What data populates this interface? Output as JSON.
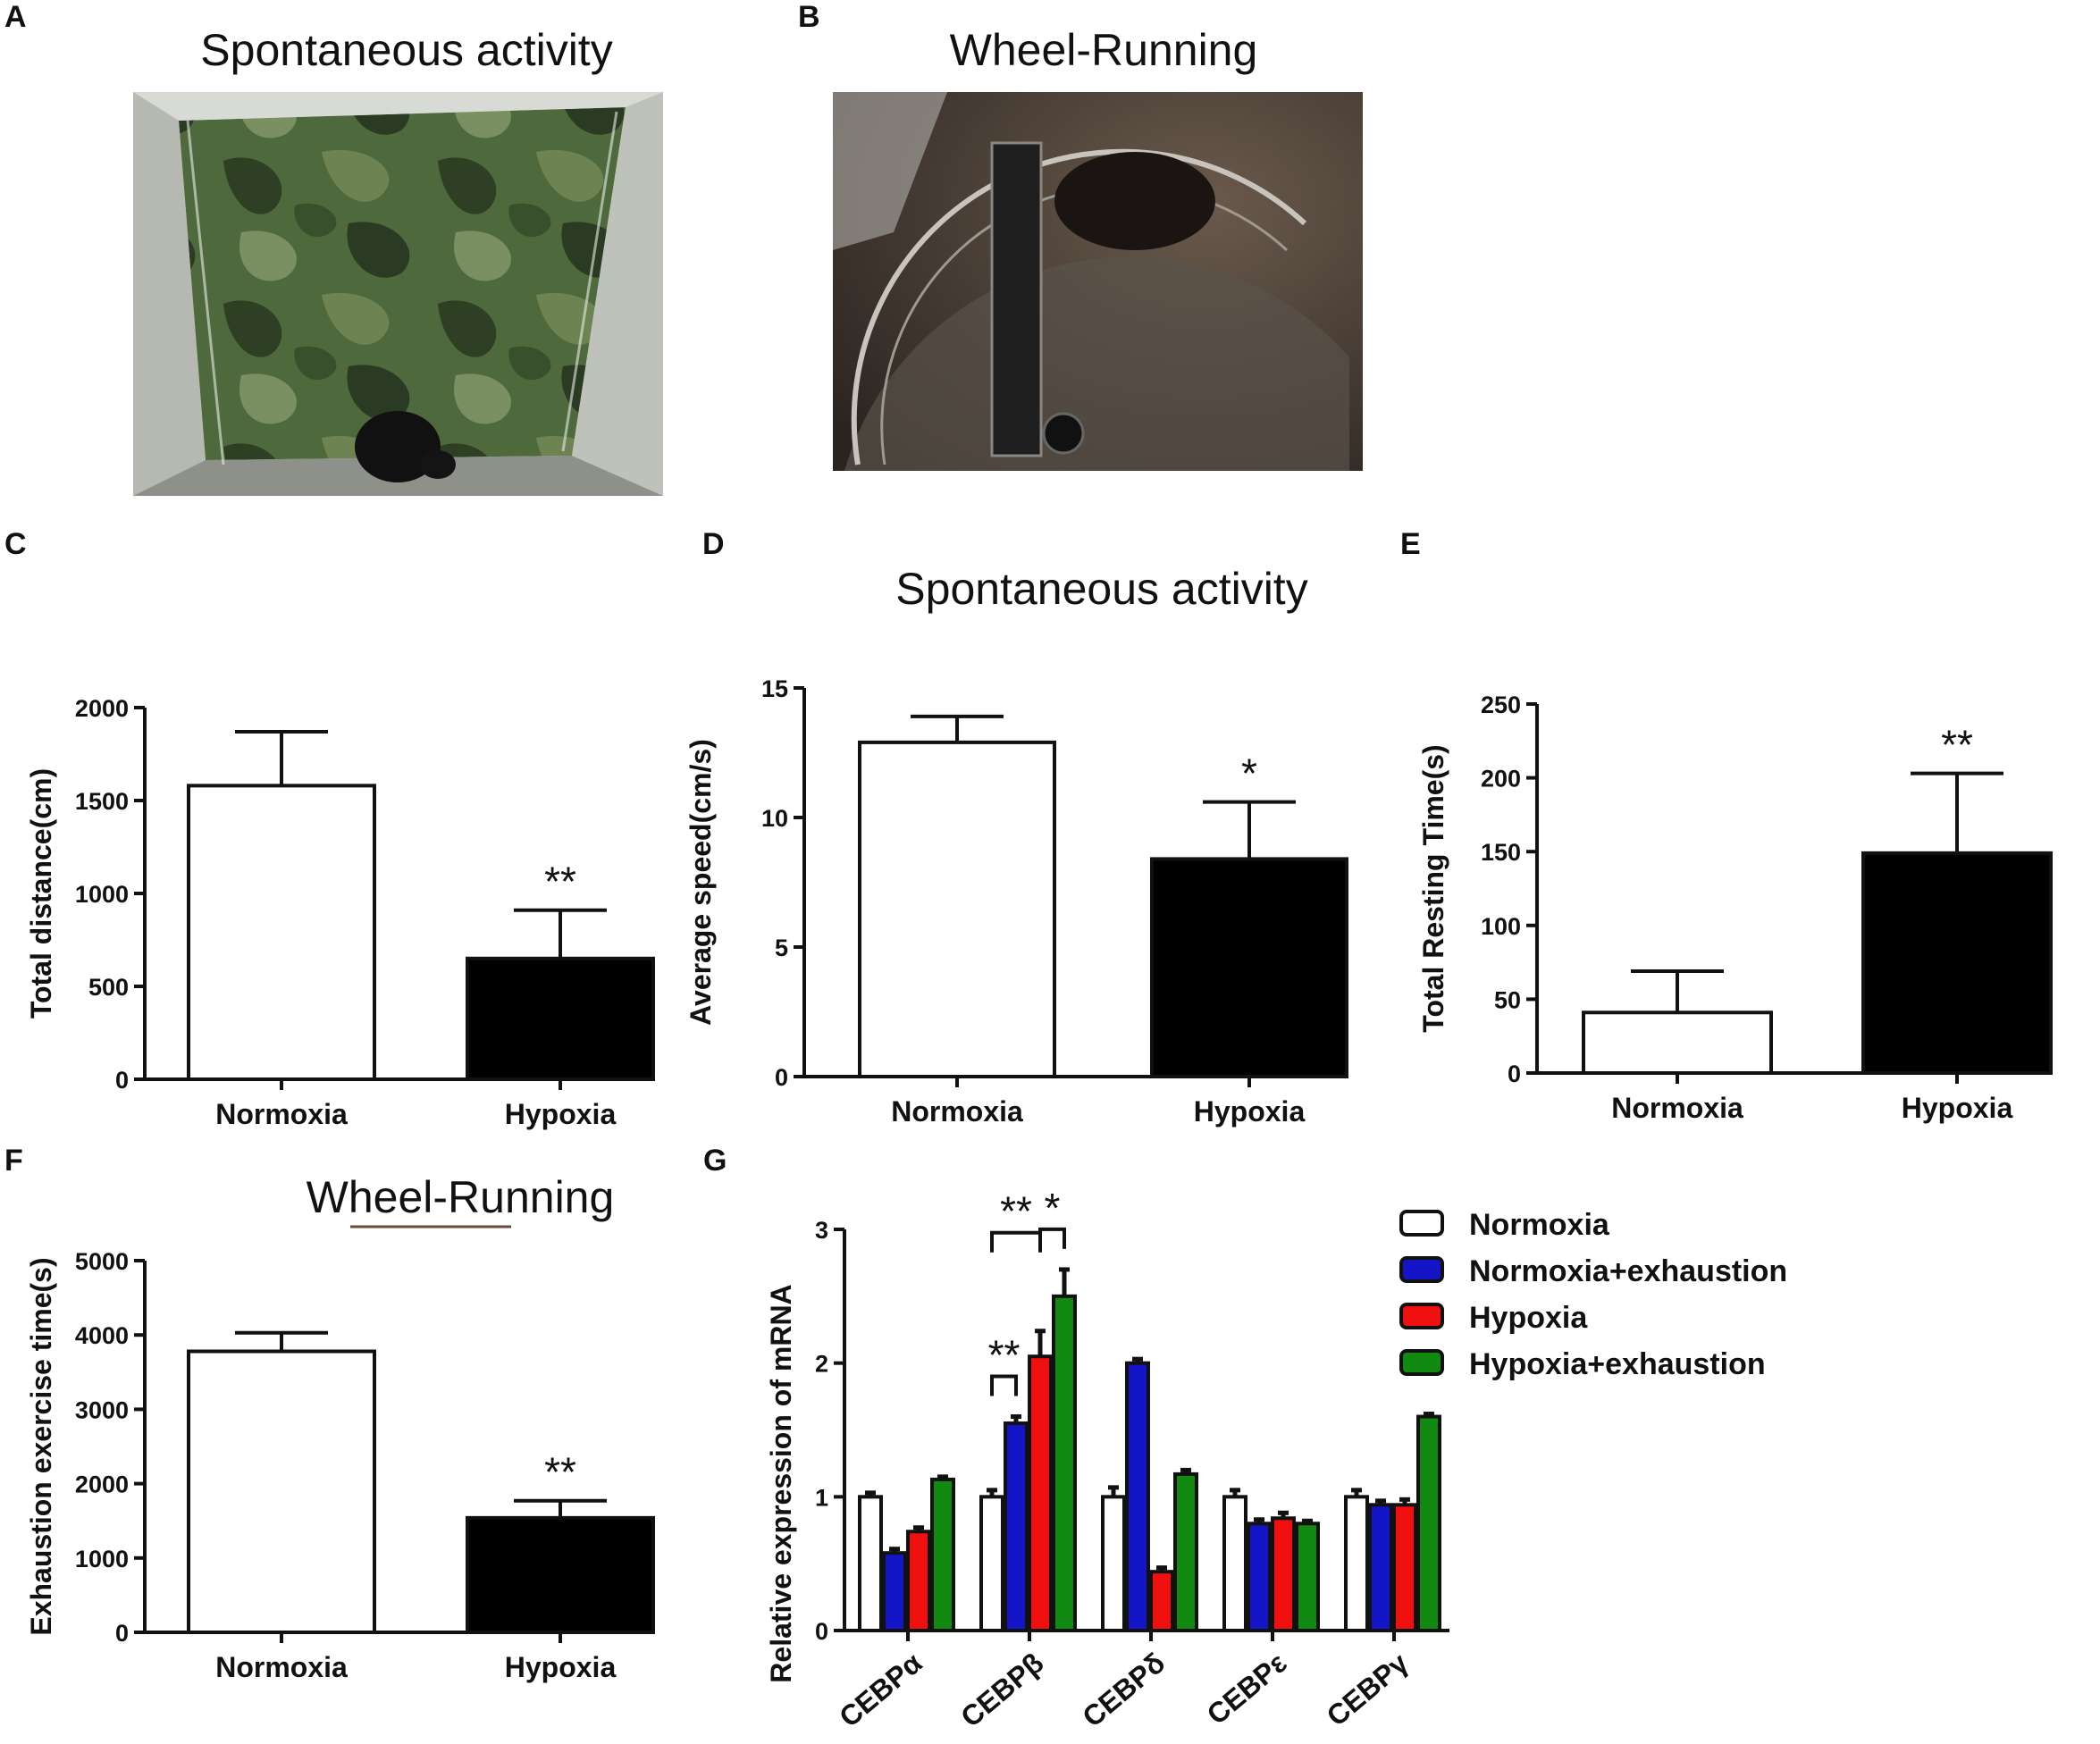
{
  "panels": {
    "A": {
      "letter": "A",
      "title": "Spontaneous activity"
    },
    "B": {
      "letter": "B",
      "title": "Wheel-Running"
    },
    "C": {
      "letter": "C"
    },
    "D": {
      "letter": "D"
    },
    "E": {
      "letter": "E"
    },
    "F": {
      "letter": "F"
    },
    "G": {
      "letter": "G"
    }
  },
  "section_titles": {
    "spontaneous": "Spontaneous activity",
    "wheel": "Wheel-Running"
  },
  "colors": {
    "normoxia": "#ffffff",
    "hypoxia": "#000000",
    "normoxia_exhaustion": "#1515c8",
    "hypoxia_red": "#f01010",
    "hypoxia_exhaustion": "#128a12"
  },
  "chart_data": [
    {
      "id": "C",
      "type": "bar",
      "categories": [
        "Normoxia",
        "Hypoxia"
      ],
      "values": [
        1580,
        650
      ],
      "errors": [
        290,
        260
      ],
      "fills": [
        "#ffffff",
        "#000000"
      ],
      "significance": [
        "",
        "**"
      ],
      "ylabel": "Total distance(cm)",
      "ylim": [
        0,
        2000
      ],
      "yticks": [
        0,
        500,
        1000,
        1500,
        2000
      ]
    },
    {
      "id": "D",
      "type": "bar",
      "categories": [
        "Normoxia",
        "Hypoxia"
      ],
      "values": [
        12.9,
        8.4
      ],
      "errors": [
        1.0,
        2.2
      ],
      "fills": [
        "#ffffff",
        "#000000"
      ],
      "significance": [
        "",
        "*"
      ],
      "ylabel": "Average speed(cm/s)",
      "ylim": [
        0,
        15
      ],
      "yticks": [
        0,
        5,
        10,
        15
      ]
    },
    {
      "id": "E",
      "type": "bar",
      "categories": [
        "Normoxia",
        "Hypoxia"
      ],
      "values": [
        41,
        149
      ],
      "errors": [
        28,
        54
      ],
      "fills": [
        "#ffffff",
        "#000000"
      ],
      "significance": [
        "",
        "**"
      ],
      "ylabel": "Total Resting Time(s)",
      "ylim": [
        0,
        250
      ],
      "yticks": [
        0,
        50,
        100,
        150,
        200,
        250
      ]
    },
    {
      "id": "F",
      "type": "bar",
      "categories": [
        "Normoxia",
        "Hypoxia"
      ],
      "values": [
        3780,
        1540
      ],
      "errors": [
        250,
        230
      ],
      "fills": [
        "#ffffff",
        "#000000"
      ],
      "significance": [
        "",
        "**"
      ],
      "ylabel": "Exhaustion exercise time(s)",
      "ylim": [
        0,
        5000
      ],
      "yticks": [
        0,
        1000,
        2000,
        3000,
        4000,
        5000
      ]
    },
    {
      "id": "G",
      "type": "bar",
      "categories": [
        "CEBPα",
        "CEBPβ",
        "CEBPδ",
        "CEBPε",
        "CEBPγ"
      ],
      "series": [
        {
          "name": "Normoxia",
          "color": "#ffffff",
          "values": [
            1.0,
            1.0,
            1.0,
            1.0,
            1.0
          ],
          "errors": [
            0.03,
            0.05,
            0.07,
            0.05,
            0.05
          ]
        },
        {
          "name": "Normoxia+exhaustion",
          "color": "#1515c8",
          "values": [
            0.58,
            1.55,
            2.0,
            0.8,
            0.94
          ],
          "errors": [
            0.03,
            0.05,
            0.03,
            0.03,
            0.03
          ]
        },
        {
          "name": "Hypoxia",
          "color": "#f01010",
          "values": [
            0.74,
            2.05,
            0.44,
            0.84,
            0.94
          ],
          "errors": [
            0.03,
            0.19,
            0.03,
            0.04,
            0.04
          ]
        },
        {
          "name": "Hypoxia+exhaustion",
          "color": "#128a12",
          "values": [
            1.13,
            2.5,
            1.17,
            0.8,
            1.6
          ],
          "errors": [
            0.02,
            0.2,
            0.03,
            0.02,
            0.02
          ]
        }
      ],
      "brackets": [
        {
          "category": 1,
          "from_series": 0,
          "to_series": 1,
          "label": "**"
        },
        {
          "category": 1,
          "from_series": 0,
          "to_series": 2,
          "label": "**"
        },
        {
          "category": 1,
          "from_series": 2,
          "to_series": 3,
          "label": "*"
        }
      ],
      "ylabel": "Relative expression of  mRNA",
      "ylim": [
        0,
        3
      ],
      "yticks": [
        0,
        1,
        2,
        3
      ],
      "legend_position": "right"
    }
  ]
}
